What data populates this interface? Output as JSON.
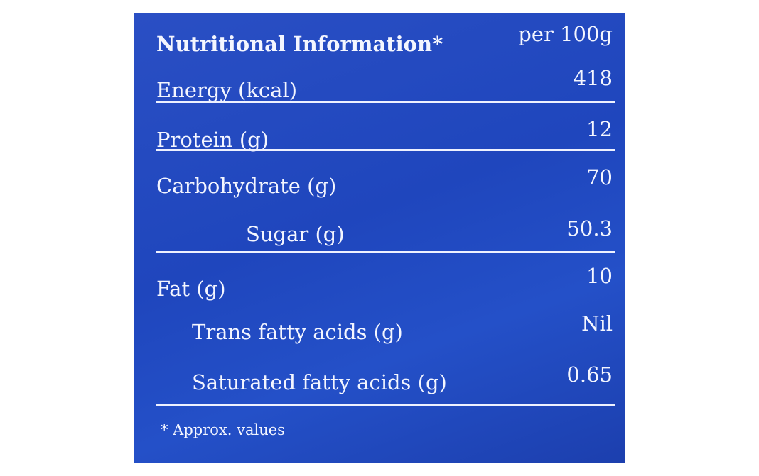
{
  "header": {
    "title": "Nutritional Information*",
    "unit": "per 100g"
  },
  "table": {
    "rows": [
      [
        "Energy (kcal)",
        "418"
      ],
      [
        "Protein (g)",
        "12"
      ],
      [
        "Carbohydrate (g)",
        "70"
      ],
      [
        "Sugar (g)",
        "50.3"
      ],
      [
        "Fat (g)",
        "10"
      ],
      [
        "Trans fatty acids (g)",
        "Nil"
      ],
      [
        "Saturated fatty acids (g)",
        "0.65"
      ]
    ]
  },
  "footnote": "* Approx. values"
}
